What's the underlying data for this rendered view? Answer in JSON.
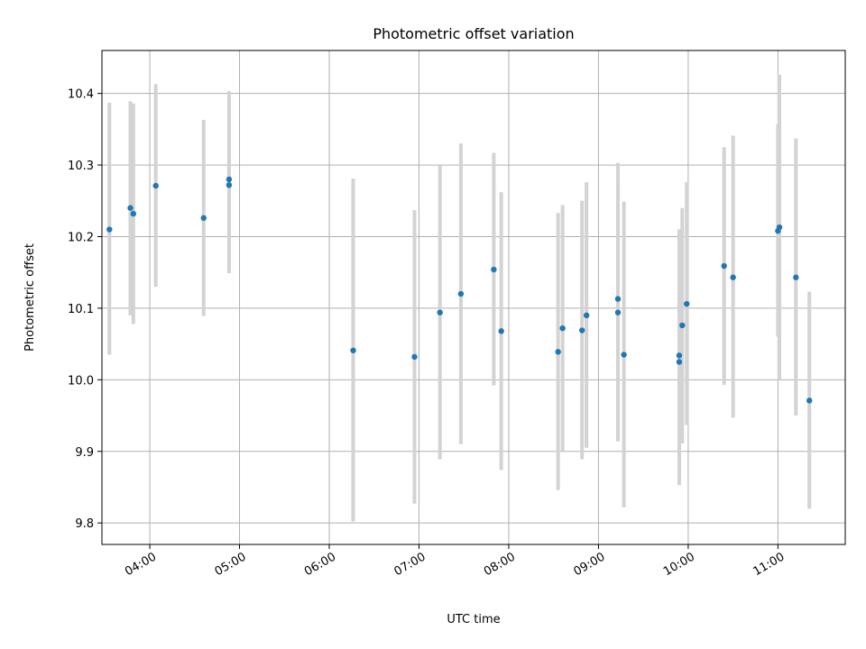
{
  "chart_data": {
    "type": "scatter",
    "title": "Photometric offset variation",
    "xlabel": "UTC time",
    "ylabel": "Photometric offset",
    "xlim": [
      "03:28",
      "11:45"
    ],
    "ylim": [
      9.77,
      10.46
    ],
    "grid": true,
    "x_ticks": [
      "04:00",
      "05:00",
      "06:00",
      "07:00",
      "08:00",
      "09:00",
      "10:00",
      "11:00"
    ],
    "y_ticks": [
      "9.8",
      "9.9",
      "10.0",
      "10.1",
      "10.2",
      "10.3",
      "10.4"
    ],
    "series": [
      {
        "points": [
          {
            "x": "03:33",
            "y": 10.21,
            "ylow": 10.035,
            "yhigh": 10.387
          },
          {
            "x": "03:47",
            "y": 10.24,
            "ylow": 10.09,
            "yhigh": 10.389
          },
          {
            "x": "03:49",
            "y": 10.232,
            "ylow": 10.078,
            "yhigh": 10.386
          },
          {
            "x": "04:04",
            "y": 10.271,
            "ylow": 10.13,
            "yhigh": 10.413
          },
          {
            "x": "04:36",
            "y": 10.226,
            "ylow": 10.089,
            "yhigh": 10.363
          },
          {
            "x": "04:53",
            "y": 10.272,
            "ylow": 10.149,
            "yhigh": 10.403
          },
          {
            "x": "04:53",
            "y": 10.28,
            "ylow": 10.16,
            "yhigh": 10.395
          },
          {
            "x": "06:16",
            "y": 10.041,
            "ylow": 9.802,
            "yhigh": 10.281
          },
          {
            "x": "06:57",
            "y": 10.032,
            "ylow": 9.827,
            "yhigh": 10.237
          },
          {
            "x": "07:14",
            "y": 10.094,
            "ylow": 9.889,
            "yhigh": 10.299
          },
          {
            "x": "07:28",
            "y": 10.12,
            "ylow": 9.91,
            "yhigh": 10.33
          },
          {
            "x": "07:50",
            "y": 10.154,
            "ylow": 9.992,
            "yhigh": 10.317
          },
          {
            "x": "07:55",
            "y": 10.068,
            "ylow": 9.874,
            "yhigh": 10.262
          },
          {
            "x": "08:33",
            "y": 10.039,
            "ylow": 9.846,
            "yhigh": 10.233
          },
          {
            "x": "08:36",
            "y": 10.072,
            "ylow": 9.9,
            "yhigh": 10.244
          },
          {
            "x": "08:49",
            "y": 10.069,
            "ylow": 9.889,
            "yhigh": 10.25
          },
          {
            "x": "08:52",
            "y": 10.09,
            "ylow": 9.905,
            "yhigh": 10.276
          },
          {
            "x": "09:13",
            "y": 10.113,
            "ylow": 9.915,
            "yhigh": 10.303
          },
          {
            "x": "09:13",
            "y": 10.094,
            "ylow": 9.914,
            "yhigh": 10.274
          },
          {
            "x": "09:17",
            "y": 10.035,
            "ylow": 9.822,
            "yhigh": 10.249
          },
          {
            "x": "09:54",
            "y": 10.025,
            "ylow": 9.853,
            "yhigh": 10.21
          },
          {
            "x": "09:54",
            "y": 10.034,
            "ylow": 9.863,
            "yhigh": 10.205
          },
          {
            "x": "09:56",
            "y": 10.076,
            "ylow": 9.911,
            "yhigh": 10.24
          },
          {
            "x": "09:59",
            "y": 10.106,
            "ylow": 9.937,
            "yhigh": 10.276
          },
          {
            "x": "10:24",
            "y": 10.159,
            "ylow": 9.993,
            "yhigh": 10.325
          },
          {
            "x": "10:30",
            "y": 10.143,
            "ylow": 9.947,
            "yhigh": 10.341
          },
          {
            "x": "11:00",
            "y": 10.208,
            "ylow": 10.06,
            "yhigh": 10.357
          },
          {
            "x": "11:01",
            "y": 10.213,
            "ylow": 10.0,
            "yhigh": 10.426
          },
          {
            "x": "11:12",
            "y": 10.143,
            "ylow": 9.95,
            "yhigh": 10.337
          },
          {
            "x": "11:21",
            "y": 9.971,
            "ylow": 9.82,
            "yhigh": 10.123
          }
        ],
        "point_color": "#1f77b4",
        "errorbar_color": "#d3d3d3"
      }
    ]
  }
}
